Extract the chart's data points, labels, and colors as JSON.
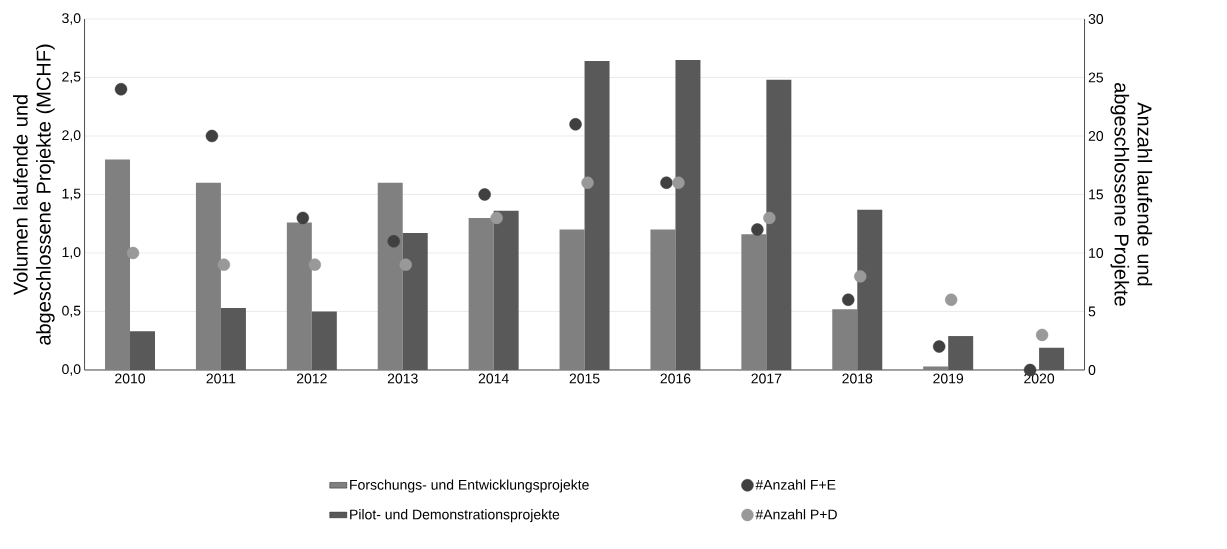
{
  "chart_data": {
    "type": "bar",
    "ylabel": "Volumen laufende und abgeschlossene Projekte (MCHF)",
    "y2label": "Anzahl laufende und abgeschlossene Projekte",
    "categories": [
      "2010",
      "2011",
      "2012",
      "2013",
      "2014",
      "2015",
      "2016",
      "2017",
      "2018",
      "2019",
      "2020"
    ],
    "series": [
      {
        "name": "Forschungs- und Entwicklungsprojekte",
        "color": "#808080",
        "values": [
          1.8,
          1.6,
          1.26,
          1.6,
          1.3,
          1.2,
          1.2,
          1.16,
          0.52,
          0.03,
          0
        ]
      },
      {
        "name": "Pilot- und Demonstrationsprojekte",
        "color": "#595959",
        "values": [
          0.33,
          0.53,
          0.5,
          1.17,
          1.36,
          2.64,
          2.65,
          2.48,
          1.37,
          0.29,
          0.19
        ]
      },
      {
        "name": "#Anzahl F+E",
        "type": "scatter",
        "axis": "y2",
        "color": "#404040",
        "values": [
          24,
          20,
          13,
          11,
          15,
          21,
          16,
          12,
          6,
          2,
          0
        ]
      },
      {
        "name": "#Anzahl P+D",
        "type": "scatter",
        "axis": "y2",
        "color": "#999999",
        "values": [
          10,
          9,
          9,
          9,
          13,
          16,
          16,
          13,
          8,
          6,
          3
        ]
      }
    ],
    "ylim": [
      0,
      3
    ],
    "yticks": [
      {
        "value": 0,
        "label": "0,0"
      },
      {
        "value": 0.5,
        "label": "0,5"
      },
      {
        "value": 1,
        "label": "1,0"
      },
      {
        "value": 1.5,
        "label": "1,5"
      },
      {
        "value": 2,
        "label": "2,0"
      },
      {
        "value": 2.5,
        "label": "2,5"
      },
      {
        "value": 3,
        "label": "3,0"
      }
    ],
    "y2lim": [
      0,
      30
    ],
    "y2ticks": [
      0,
      5,
      10,
      15,
      20,
      25,
      30
    ],
    "grid": "y",
    "legend": "bottom"
  }
}
